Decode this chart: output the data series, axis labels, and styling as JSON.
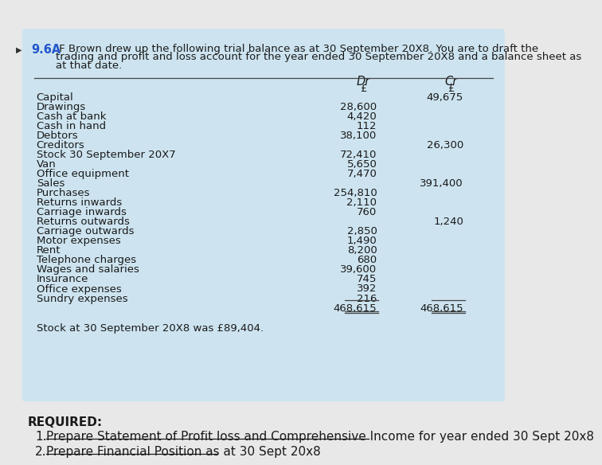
{
  "header_number": "9.6A",
  "header_text": " F Brown drew up the following trial balance as at 30 September 20X8. You are to draft the\ntrading and profit and loss account for the year ended 30 September 20X8 and a balance sheet as\nat that date.",
  "col_dr": "Dr",
  "col_cr": "Cr",
  "currency_symbol": "£",
  "rows": [
    {
      "label": "Capital",
      "dr": "",
      "cr": "49,675"
    },
    {
      "label": "Drawings",
      "dr": "28,600",
      "cr": ""
    },
    {
      "label": "Cash at bank",
      "dr": "4,420",
      "cr": ""
    },
    {
      "label": "Cash in hand",
      "dr": "112",
      "cr": ""
    },
    {
      "label": "Debtors",
      "dr": "38,100",
      "cr": ""
    },
    {
      "label": "Creditors",
      "dr": "",
      "cr": "26,300"
    },
    {
      "label": "Stock 30 September 20X7",
      "dr": "72,410",
      "cr": ""
    },
    {
      "label": "Van",
      "dr": "5,650",
      "cr": ""
    },
    {
      "label": "Office equipment",
      "dr": "7,470",
      "cr": ""
    },
    {
      "label": "Sales",
      "dr": "",
      "cr": "391,400"
    },
    {
      "label": "Purchases",
      "dr": "254,810",
      "cr": ""
    },
    {
      "label": "Returns inwards",
      "dr": "2,110",
      "cr": ""
    },
    {
      "label": "Carriage inwards",
      "dr": "760",
      "cr": ""
    },
    {
      "label": "Returns outwards",
      "dr": "",
      "cr": "1,240"
    },
    {
      "label": "Carriage outwards",
      "dr": "2,850",
      "cr": ""
    },
    {
      "label": "Motor expenses",
      "dr": "1,490",
      "cr": ""
    },
    {
      "label": "Rent",
      "dr": "8,200",
      "cr": ""
    },
    {
      "label": "Telephone charges",
      "dr": "680",
      "cr": ""
    },
    {
      "label": "Wages and salaries",
      "dr": "39,600",
      "cr": ""
    },
    {
      "label": "Insurance",
      "dr": "745",
      "cr": ""
    },
    {
      "label": "Office expenses",
      "dr": "392",
      "cr": ""
    },
    {
      "label": "Sundry expenses",
      "dr": "216",
      "cr": ""
    }
  ],
  "total_dr": "468,615",
  "total_cr": "468,615",
  "footnote": "Stock at 30 September 20X8 was £89,404.",
  "required_title": "REQUIRED:",
  "required_items": [
    "Prepare Statement of Profit loss and Comprehensive Income for year ended 30 Sept 20x8",
    "Prepare Financial Position as at 30 Sept 20x8"
  ],
  "bg_color": "#cde4f0",
  "header_num_color": "#2255cc",
  "text_color": "#1a1a1a",
  "table_line_color": "#444444",
  "row_font_size": 9.5,
  "header_font_size": 9.5,
  "col_header_font_size": 10.5,
  "required_font_size": 11,
  "required_item_font_size": 11,
  "page_bg": "#e8e8e8"
}
